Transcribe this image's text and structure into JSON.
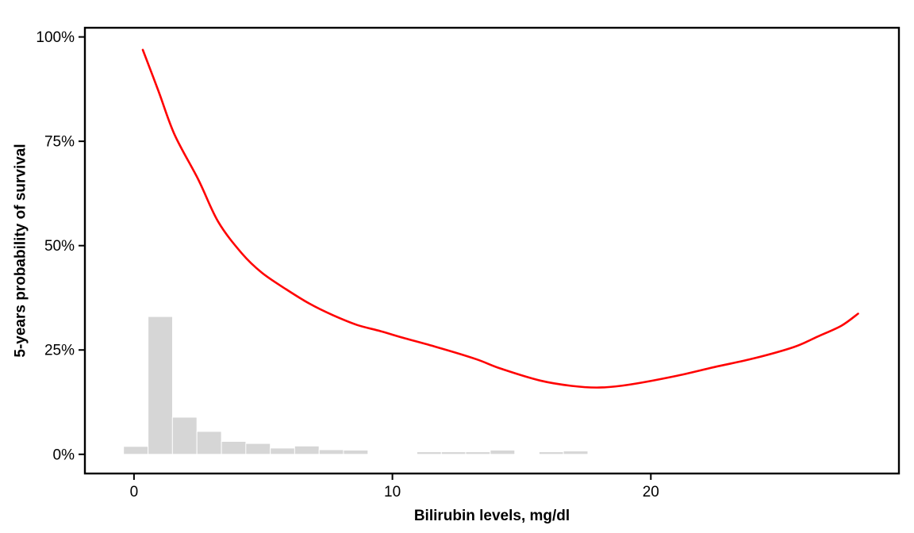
{
  "page": {
    "background": "#FFFFFF"
  },
  "chart_data": {
    "type": "line",
    "title": "",
    "xlabel": "Bilirubin levels, mg/dl",
    "ylabel": "5-years probability of survival",
    "xlim": [
      -1.9,
      29.6
    ],
    "ylim_pct": [
      -4.6,
      102.2
    ],
    "x_ticks": [
      0,
      10,
      20
    ],
    "x_tick_labels": [
      "0",
      "10",
      "20"
    ],
    "y_ticks_pct": [
      0,
      25,
      50,
      75,
      100
    ],
    "y_tick_labels": [
      "0%",
      "25%",
      "50%",
      "75%",
      "100%"
    ],
    "grid": false,
    "legend_position": "none",
    "panel_border": true,
    "colors": {
      "curve": "#FF0000",
      "histogram_fill": "#D6D6D6",
      "axis": "#000000"
    },
    "series": [
      {
        "name": "smoothed 5-years survival probability vs bilirubin",
        "type": "line",
        "color": "#FF0000",
        "x": [
          0.34,
          0.95,
          1.57,
          2.49,
          3.26,
          4.18,
          4.95,
          5.87,
          6.79,
          7.71,
          8.63,
          9.55,
          10.48,
          11.71,
          13.24,
          14.16,
          15.7,
          16.93,
          18.0,
          19.08,
          20.92,
          22.46,
          23.99,
          25.53,
          26.45,
          27.37,
          28.02
        ],
        "y_pct": [
          96.9,
          87.0,
          76.6,
          65.8,
          55.7,
          48.1,
          43.5,
          39.6,
          36.1,
          33.3,
          31.0,
          29.5,
          27.8,
          25.7,
          22.8,
          20.6,
          17.7,
          16.4,
          16.0,
          16.6,
          18.7,
          20.9,
          23.0,
          25.7,
          28.2,
          30.8,
          33.7
        ]
      }
    ],
    "histogram": {
      "name": "bilirubin level distribution",
      "fill": "#D6D6D6",
      "border": "#FFFFFF",
      "binwidth": 0.95,
      "bins": [
        {
          "center": 0.07,
          "height_pct": 1.9
        },
        {
          "center": 1.02,
          "height_pct": 33.0
        },
        {
          "center": 1.96,
          "height_pct": 8.9
        },
        {
          "center": 2.91,
          "height_pct": 5.5
        },
        {
          "center": 3.86,
          "height_pct": 3.1
        },
        {
          "center": 4.8,
          "height_pct": 2.6
        },
        {
          "center": 5.75,
          "height_pct": 1.5
        },
        {
          "center": 6.69,
          "height_pct": 2.0
        },
        {
          "center": 7.64,
          "height_pct": 1.1
        },
        {
          "center": 8.58,
          "height_pct": 1.0
        },
        {
          "center": 11.42,
          "height_pct": 0.6
        },
        {
          "center": 12.37,
          "height_pct": 0.6
        },
        {
          "center": 13.31,
          "height_pct": 0.6
        },
        {
          "center": 14.26,
          "height_pct": 1.0
        },
        {
          "center": 16.15,
          "height_pct": 0.6
        },
        {
          "center": 17.09,
          "height_pct": 0.8
        }
      ]
    }
  }
}
